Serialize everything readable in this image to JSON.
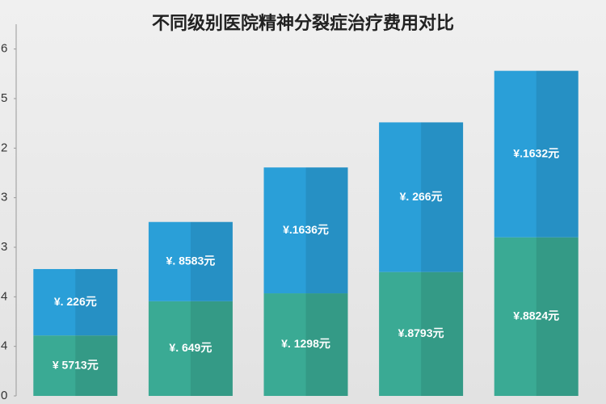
{
  "chart_data": {
    "type": "stacked_bar",
    "title": "不同级别医院精神分裂症治疗费用对比",
    "ylim": [
      0,
      7.5
    ],
    "yticks": [
      0,
      {
        "value": 1,
        "label": "4"
      },
      {
        "value": 2,
        "label": "4"
      },
      3,
      {
        "value": 4,
        "label": "3"
      },
      {
        "value": 5,
        "label": "2"
      },
      {
        "value": 6,
        "label": "5"
      },
      {
        "value": 7,
        "label": "6"
      }
    ],
    "series": [
      {
        "color": "#3aaa94",
        "values": [
          1.22,
          1.91,
          2.07,
          2.5,
          3.2
        ],
        "labels": [
          "¥ 5713元",
          "¥. 649元",
          "¥. 1298元",
          "¥.8793元",
          "¥.8824元"
        ]
      },
      {
        "color": "#2a9fd8",
        "values": [
          1.34,
          1.6,
          2.54,
          3.02,
          3.36
        ],
        "labels": [
          "¥. 226元",
          "¥. 8583元",
          "¥.1636元",
          "¥. 266元",
          "¥.1632元"
        ]
      }
    ]
  }
}
